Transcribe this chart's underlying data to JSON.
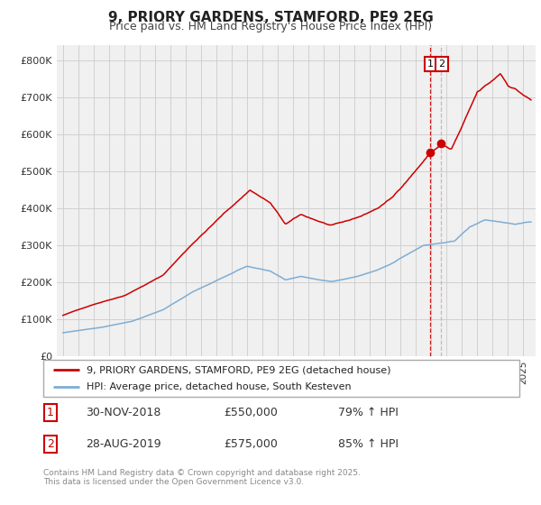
{
  "title": "9, PRIORY GARDENS, STAMFORD, PE9 2EG",
  "subtitle": "Price paid vs. HM Land Registry's House Price Index (HPI)",
  "legend_line1": "9, PRIORY GARDENS, STAMFORD, PE9 2EG (detached house)",
  "legend_line2": "HPI: Average price, detached house, South Kesteven",
  "footer": "Contains HM Land Registry data © Crown copyright and database right 2025.\nThis data is licensed under the Open Government Licence v3.0.",
  "annotation1_date": "30-NOV-2018",
  "annotation1_price": "£550,000",
  "annotation1_hpi": "79% ↑ HPI",
  "annotation2_date": "28-AUG-2019",
  "annotation2_price": "£575,000",
  "annotation2_hpi": "85% ↑ HPI",
  "red_color": "#cc0000",
  "blue_color": "#7eadd4",
  "background_color": "#f0f0f0",
  "grid_color": "#cccccc",
  "ylabel_ticks": [
    "£0",
    "£100K",
    "£200K",
    "£300K",
    "£400K",
    "£500K",
    "£600K",
    "£700K",
    "£800K"
  ],
  "ytick_values": [
    0,
    100000,
    200000,
    300000,
    400000,
    500000,
    600000,
    700000,
    800000
  ],
  "ylim": [
    0,
    840000
  ],
  "xlim_min": 1994.6,
  "xlim_max": 2025.8,
  "sale1_x": 2018.92,
  "sale1_y": 550000,
  "sale2_x": 2019.65,
  "sale2_y": 575000
}
